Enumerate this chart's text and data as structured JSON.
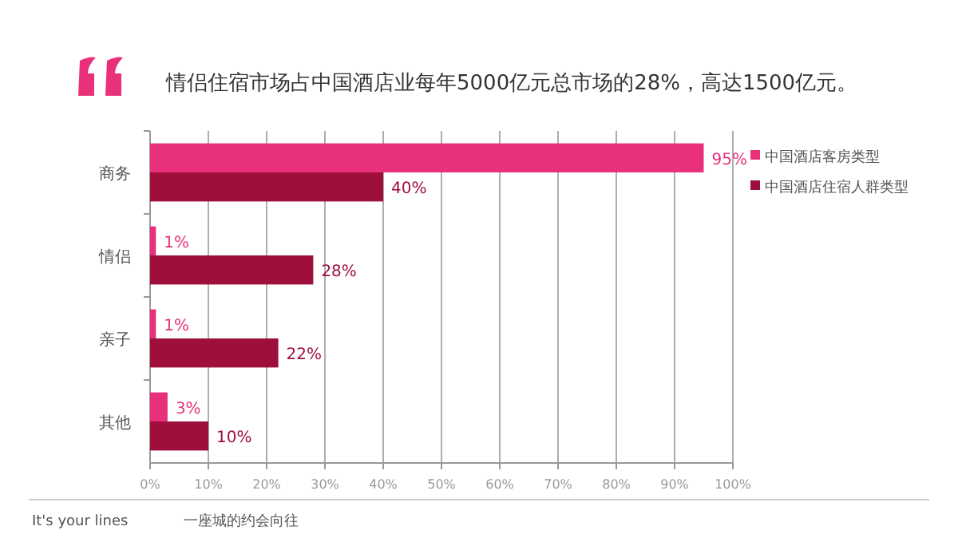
{
  "chart_data": {
    "type": "bar",
    "orientation": "horizontal",
    "title": "情侣住宿市场占中国酒店业每年5000亿元总市场的28%，高达1500亿元。",
    "categories": [
      "商务",
      "情侣",
      "亲子",
      "其他"
    ],
    "series": [
      {
        "name": "中国酒店客房类型",
        "color": "#e8317a",
        "values": [
          95,
          1,
          1,
          3
        ],
        "value_labels": [
          "95%",
          "1%",
          "1%",
          "3%"
        ]
      },
      {
        "name": "中国酒店住宿人群类型",
        "color": "#9e0f3c",
        "values": [
          40,
          28,
          22,
          10
        ],
        "value_labels": [
          "40%",
          "28%",
          "22%",
          "10%"
        ]
      }
    ],
    "xlim": [
      0,
      100
    ],
    "xticks": [
      {
        "value": 0,
        "label": "0%"
      },
      {
        "value": 10,
        "label": "10%"
      },
      {
        "value": 20,
        "label": "20%"
      },
      {
        "value": 30,
        "label": "30%"
      },
      {
        "value": 40,
        "label": "40%"
      },
      {
        "value": 50,
        "label": "50%"
      },
      {
        "value": 60,
        "label": "60%"
      },
      {
        "value": 70,
        "label": "70%"
      },
      {
        "value": 80,
        "label": "80%"
      },
      {
        "value": 90,
        "label": "90%"
      },
      {
        "value": 100,
        "label": "100%"
      }
    ],
    "grid": "x",
    "legend": "right",
    "annotations": [
      "It's your lines",
      "一座城的约会向往"
    ]
  }
}
